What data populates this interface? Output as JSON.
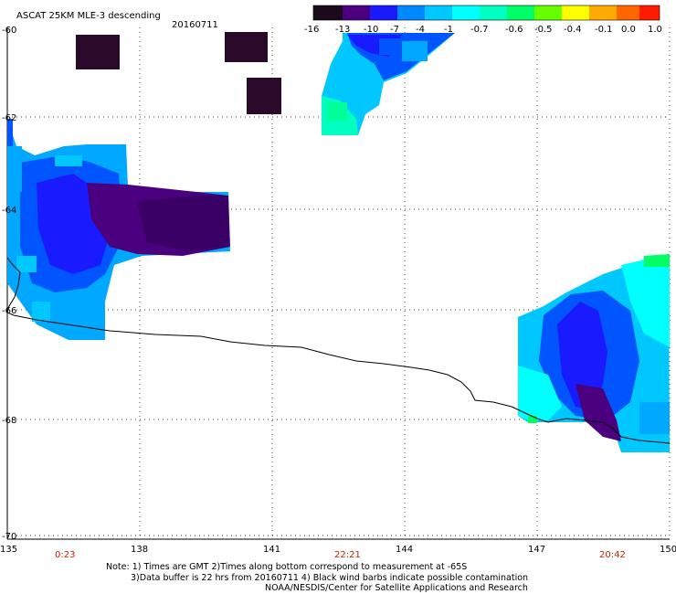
{
  "header": {
    "title": "ASCAT 25KM MLE-3 descending",
    "date": "20160711"
  },
  "colorbar": {
    "labels": [
      "-16",
      "-13",
      "-10",
      "-7",
      "-4",
      "-1",
      "-0.7",
      "-0.6",
      "-0.5",
      "-0.4",
      "-0.1",
      "0.0",
      "1.0"
    ],
    "colors": [
      "#1a0a1a",
      "#330033",
      "#4b0080",
      "#2200ff",
      "#0055ff",
      "#00a8ff",
      "#00ffff",
      "#00ff80",
      "#80ff00",
      "#ffff00",
      "#ffaa00",
      "#ff5500",
      "#ff1a00"
    ]
  },
  "map": {
    "lat_labels": [
      "-60",
      "-62",
      "-64",
      "-66",
      "-68",
      "-70"
    ],
    "lon_labels": [
      "135",
      "138",
      "141",
      "144",
      "147",
      "150"
    ],
    "time_labels": [
      "0:23",
      "22:21",
      "20:42"
    ]
  },
  "notes": {
    "line1": "Note: 1) Times are GMT 2)Times along bottom correspond to measurement at -65S",
    "line2": "3)Data buffer is 22 hrs from 20160711 4) Black wind barbs indicate possible contamination",
    "line3": "NOAA/NESDIS/Center for Satellite Applications and Research"
  }
}
